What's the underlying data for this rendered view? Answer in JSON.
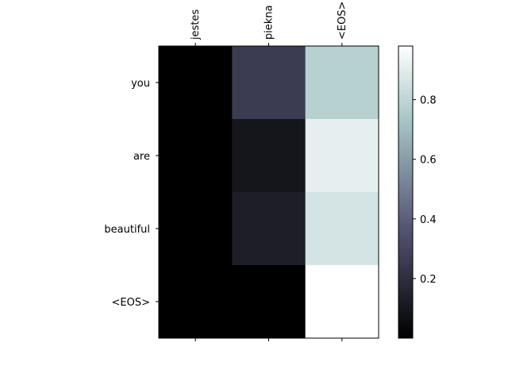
{
  "chart_data": {
    "type": "heatmap",
    "title": "",
    "xlabel": "",
    "ylabel": "",
    "x_tick_labels": [
      "jestes",
      "piekna",
      "<EOS>"
    ],
    "y_tick_labels": [
      "you",
      "are",
      "beautiful",
      "<EOS>"
    ],
    "x_tick_position": "top",
    "colormap": "bone",
    "values": [
      [
        0.0,
        0.26,
        0.78
      ],
      [
        0.0,
        0.09,
        0.91
      ],
      [
        0.0,
        0.13,
        0.86
      ],
      [
        0.0,
        0.0,
        0.98
      ]
    ],
    "colorbar": {
      "vmin": 0.0,
      "vmax": 0.98,
      "ticks": [
        0.2,
        0.4,
        0.6,
        0.8
      ],
      "tick_labels": [
        "0.2",
        "0.4",
        "0.6",
        "0.8"
      ]
    }
  }
}
